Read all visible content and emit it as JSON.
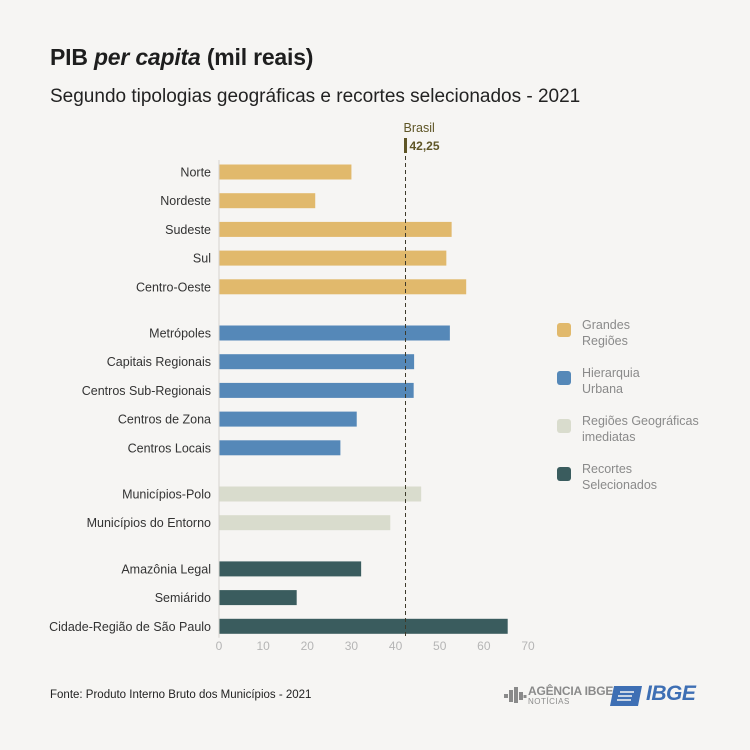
{
  "header": {
    "title_main": "PIB",
    "title_italic": "per capita",
    "title_tail": "(mil reais)",
    "subtitle": "Segundo tipologias geográficas e recortes selecionados - 2021"
  },
  "chart_data": {
    "type": "bar",
    "orientation": "horizontal",
    "categories": [
      "Norte",
      "Nordeste",
      "Sudeste",
      "Sul",
      "Centro-Oeste",
      "Metrópoles",
      "Capitais Regionais",
      "Centros Sub-Regionais",
      "Centros de Zona",
      "Centros Locais",
      "Municípios-Polo",
      "Municípios do Entorno",
      "Amazônia Legal",
      "Semiárido",
      "Cidade-Região de São Paulo"
    ],
    "values": [
      30.0,
      21.8,
      52.7,
      51.5,
      56.0,
      52.3,
      44.2,
      44.1,
      31.2,
      27.5,
      45.8,
      38.8,
      32.2,
      17.6,
      65.4
    ],
    "groups": [
      0,
      0,
      0,
      0,
      0,
      1,
      1,
      1,
      1,
      1,
      2,
      2,
      3,
      3,
      3
    ],
    "xlim": [
      0,
      70
    ],
    "xticks": [
      0,
      10,
      20,
      30,
      40,
      50,
      60,
      70
    ],
    "reference_line": {
      "label": "Brasil",
      "value": 42.25,
      "value_label": "42,25"
    },
    "grid": false,
    "legend_position": "right"
  },
  "legend": {
    "items": [
      {
        "label_line1": "Grandes",
        "label_line2": "Regiões",
        "color": "#e1b96c"
      },
      {
        "label_line1": "Hierarquia",
        "label_line2": "Urbana",
        "color": "#5588b8"
      },
      {
        "label_line1": "Regiões Geográficas",
        "label_line2": "imediatas",
        "color": "#d9dccd"
      },
      {
        "label_line1": "Recortes",
        "label_line2": "Selecionados",
        "color": "#3a5c5e"
      }
    ]
  },
  "footer": {
    "source": "Fonte: Produto Interno Bruto dos Municípios - 2021",
    "agencia_title": "AGÊNCIA IBGE",
    "agencia_sub": "NOTÍCIAS",
    "ibge_text": "IBGE"
  },
  "icons": {
    "agencia_logo": "agencia-ibge-logo-icon",
    "ibge_logo": "ibge-logo-icon"
  }
}
